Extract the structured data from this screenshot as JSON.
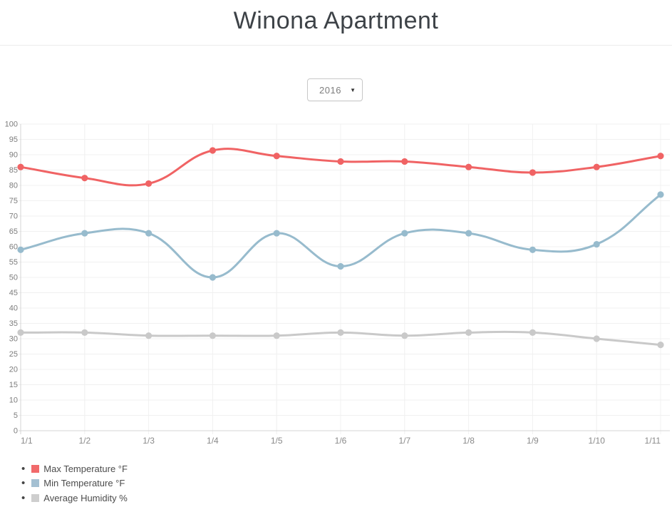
{
  "page": {
    "title": "Winona Apartment"
  },
  "controls": {
    "year_select": {
      "value": "2016",
      "caret": "▼"
    }
  },
  "legend": {
    "items": [
      {
        "label": "Max Temperature °F",
        "color": "#f16a6b"
      },
      {
        "label": "Min Temperature °F",
        "color": "#a4c0d2"
      },
      {
        "label": "Average Humidity %",
        "color": "#cecece"
      }
    ]
  },
  "chart_data": {
    "type": "line",
    "title": "Winona Apartment",
    "xlabel": "",
    "ylabel": "",
    "x": [
      "1/1",
      "1/2",
      "1/3",
      "1/4",
      "1/5",
      "1/6",
      "1/7",
      "1/8",
      "1/9",
      "1/10",
      "1/11"
    ],
    "series": [
      {
        "name": "Max Temperature °F",
        "color": "#f06364",
        "values": [
          86,
          82.4,
          80.6,
          91.4,
          89.6,
          87.8,
          87.8,
          86,
          84.2,
          86,
          89.6
        ]
      },
      {
        "name": "Min Temperature °F",
        "color": "#97bbcd",
        "values": [
          59,
          64.4,
          64.4,
          50,
          64.4,
          53.6,
          64.4,
          64.4,
          59,
          60.8,
          77
        ]
      },
      {
        "name": "Average Humidity %",
        "color": "#c9c9c9",
        "values": [
          32,
          32,
          31,
          31,
          31,
          32,
          31,
          32,
          32,
          30,
          28
        ]
      }
    ],
    "ylim": [
      0,
      100
    ],
    "ytick_step": 5,
    "yticks": [
      0,
      5,
      10,
      15,
      20,
      25,
      30,
      35,
      40,
      45,
      50,
      55,
      60,
      65,
      70,
      75,
      80,
      85,
      90,
      95,
      100
    ],
    "grid": true,
    "curve_tension": 0.4,
    "legend_position": "bottom-left",
    "colors": {
      "grid_line": "#f0f0f0",
      "axis_line": "#d4d4d4",
      "y_tick_label": "#7c7c7c",
      "x_tick_label": "#8a8a8a"
    }
  }
}
